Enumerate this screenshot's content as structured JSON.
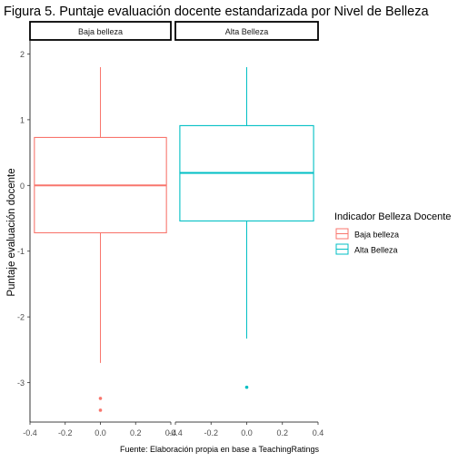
{
  "chart_data": {
    "type": "boxplot",
    "title": "Figura 5. Puntaje evaluación docente estandarizada por Nivel de Belleza",
    "ylabel": "Puntaje evaluación docente",
    "xlabel": "",
    "caption": "Fuente: Elaboración propia en base a TeachingRatings",
    "ylim": [
      -3.6,
      2.2
    ],
    "xlim": [
      -0.4,
      0.4
    ],
    "yticks": [
      -3,
      -2,
      -1,
      0,
      1,
      2
    ],
    "ytick_labels": [
      "-3",
      "-2",
      "-1",
      "0",
      "1",
      "2"
    ],
    "xticks": [
      -0.4,
      -0.2,
      0.0,
      0.2,
      0.4
    ],
    "xtick_labels": [
      "-0.4",
      "-0.2",
      "0.0",
      "0.2",
      "0.4"
    ],
    "grid": false,
    "legend": {
      "title": "Indicador Belleza Docente",
      "placement": "right",
      "entries": [
        "Baja belleza",
        "Alta Belleza"
      ]
    },
    "panels": [
      {
        "strip": "Baja belleza",
        "color": "#F8766D",
        "whisker_low": -2.7,
        "q1": -0.72,
        "median": 0.0,
        "q3": 0.73,
        "whisker_high": 1.8,
        "outliers": [
          -3.24,
          -3.42
        ],
        "box_xmin": -0.375,
        "box_xmax": 0.375
      },
      {
        "strip": "Alta Belleza",
        "color": "#00BFC4",
        "whisker_low": -2.33,
        "q1": -0.54,
        "median": 0.19,
        "q3": 0.91,
        "whisker_high": 1.8,
        "outliers": [
          -3.07
        ],
        "box_xmin": -0.375,
        "box_xmax": 0.375
      }
    ]
  }
}
